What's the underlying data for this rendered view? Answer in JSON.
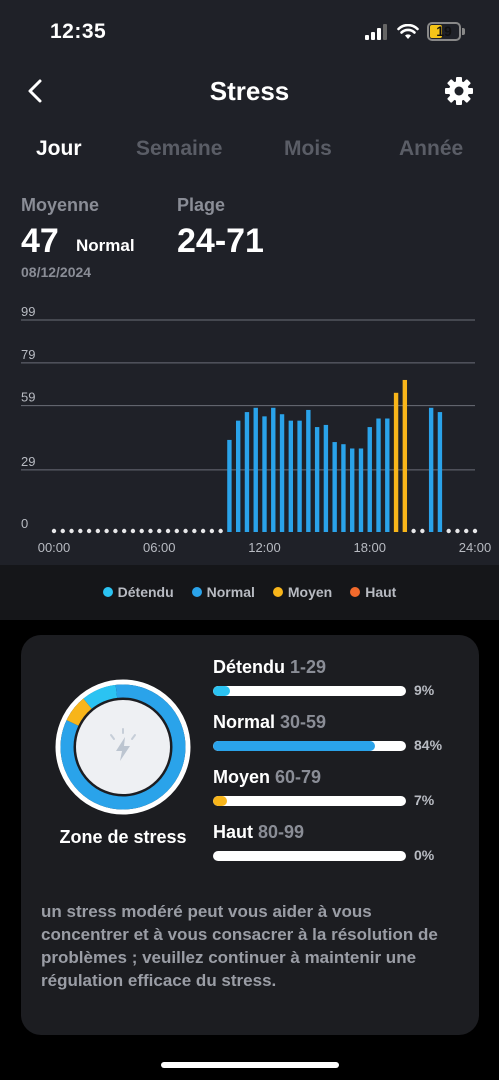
{
  "status_bar": {
    "time": "12:35",
    "battery": "19",
    "icons": [
      "signal-icon",
      "wifi-icon",
      "battery-icon"
    ]
  },
  "header": {
    "title": "Stress",
    "back_icon": "chevron-left-icon",
    "settings_icon": "gear-icon"
  },
  "tabs": [
    {
      "label": "Jour",
      "active": true
    },
    {
      "label": "Semaine",
      "active": false
    },
    {
      "label": "Mois",
      "active": false
    },
    {
      "label": "Année",
      "active": false
    }
  ],
  "stats": {
    "average_label": "Moyenne",
    "average_value": "47",
    "average_level": "Normal",
    "date": "08/12/2024",
    "range_label": "Plage",
    "range_value": "24-71"
  },
  "colors": {
    "detendu": "#2bc3f2",
    "normal": "#2aa3ea",
    "moyen": "#f8b51a",
    "haut": "#f26a2c",
    "baseline": "#e8e8ea"
  },
  "chart_data": {
    "type": "bar",
    "y_ticks": [
      "99",
      "79",
      "59",
      "29",
      "0"
    ],
    "y_tick_values": [
      99,
      79,
      59,
      29,
      0
    ],
    "x_ticks": [
      "00:00",
      "06:00",
      "12:00",
      "18:00",
      "24:00"
    ],
    "x_tick_hours": [
      0,
      6,
      12,
      18,
      24
    ],
    "ylim": [
      0,
      99
    ],
    "xlim": [
      0,
      24
    ],
    "bar_width_hours": 0.25,
    "series": [
      {
        "x": [
          10.0,
          10.5,
          11.0,
          11.5,
          12.0,
          12.5,
          13.0,
          13.5,
          14.0,
          14.5,
          15.0,
          15.5,
          16.0,
          16.5,
          17.0,
          17.5,
          18.0,
          18.5,
          19.0,
          19.5,
          20.0,
          20.5,
          21.5,
          22.0
        ],
        "values": [
          43,
          52,
          56,
          58,
          54,
          58,
          55,
          52,
          52,
          57,
          49,
          50,
          42,
          41,
          39,
          39,
          49,
          53,
          53,
          65,
          71,
          0,
          58,
          56
        ],
        "levels": [
          "normal",
          "normal",
          "normal",
          "normal",
          "normal",
          "normal",
          "normal",
          "normal",
          "normal",
          "normal",
          "normal",
          "normal",
          "normal",
          "normal",
          "normal",
          "normal",
          "normal",
          "normal",
          "normal",
          "moyen",
          "moyen",
          "none",
          "normal",
          "normal"
        ]
      }
    ],
    "grid": true
  },
  "legend": [
    {
      "label": "Détendu",
      "color_key": "detendu"
    },
    {
      "label": "Normal",
      "color_key": "normal"
    },
    {
      "label": "Moyen",
      "color_key": "moyen"
    },
    {
      "label": "Haut",
      "color_key": "haut"
    }
  ],
  "zone": {
    "label": "Zone de stress",
    "center_icon": "bolt-icon",
    "rows": [
      {
        "name": "Détendu",
        "range": "1-29",
        "percent": "9%",
        "fraction": 0.09,
        "color_key": "detendu"
      },
      {
        "name": "Normal",
        "range": "30-59",
        "percent": "84%",
        "fraction": 0.84,
        "color_key": "normal"
      },
      {
        "name": "Moyen",
        "range": "60-79",
        "percent": "7%",
        "fraction": 0.07,
        "color_key": "moyen"
      },
      {
        "name": "Haut",
        "range": "80-99",
        "percent": "0%",
        "fraction": 0.0,
        "color_key": "haut"
      }
    ],
    "advice": "un stress modéré peut vous aider à vous concentrer et à vous consacrer à la résolution de problèmes ; veuillez continuer à maintenir une régulation efficace du stress."
  }
}
